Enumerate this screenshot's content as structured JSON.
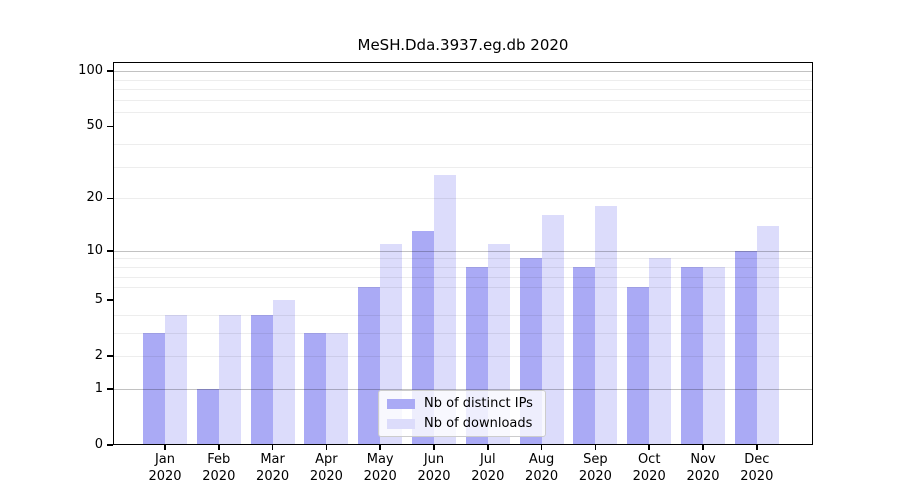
{
  "chart_data": {
    "type": "bar",
    "title": "MeSH.Dda.3937.eg.db 2020",
    "categories": [
      "Jan",
      "Feb",
      "Mar",
      "Apr",
      "May",
      "Jun",
      "Jul",
      "Aug",
      "Sep",
      "Oct",
      "Nov",
      "Dec"
    ],
    "year_label": "2020",
    "series": [
      {
        "name": "Nb of distinct IPs",
        "color": "#aaaaf5",
        "values": [
          3,
          1,
          4,
          3,
          6,
          13,
          8,
          9,
          8,
          6,
          8,
          10
        ]
      },
      {
        "name": "Nb of downloads",
        "color": "#dcdcfb",
        "values": [
          4,
          4,
          5,
          3,
          11,
          27,
          11,
          16,
          18,
          9,
          8,
          14
        ]
      }
    ],
    "xlabel": "",
    "ylabel": "",
    "yscale": "log1p",
    "ylim": [
      0,
      112
    ],
    "yticks": [
      0,
      1,
      2,
      5,
      10,
      20,
      50,
      100
    ],
    "grid_major": [
      1,
      10,
      100
    ],
    "grid_minor": [
      2,
      3,
      4,
      6,
      7,
      8,
      9,
      20,
      30,
      40,
      60,
      70,
      80,
      90
    ],
    "grid": true,
    "legend_position": "lower center"
  }
}
